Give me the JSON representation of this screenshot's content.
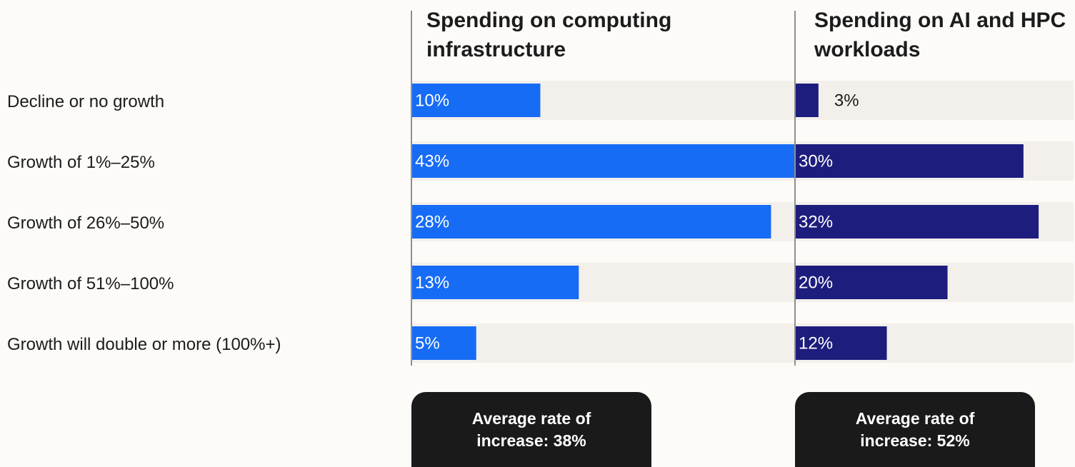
{
  "chart_data": {
    "type": "bar",
    "orientation": "horizontal",
    "categories": [
      "Decline or no growth",
      "Growth of 1%–25%",
      "Growth of 26%–50%",
      "Growth of 51%–100%",
      "Growth will double or more (100%+)"
    ],
    "panels": [
      {
        "title": "Spending on computing infrastructure",
        "values": [
          10,
          43,
          28,
          13,
          5
        ],
        "labels": [
          "10%",
          "43%",
          "28%",
          "13%",
          "5%"
        ],
        "color": "#176cf5",
        "xlim": [
          0,
          51.6
        ],
        "average_note": "Average rate of increase: 38%"
      },
      {
        "title": "Spending on AI and HPC workloads",
        "values": [
          3,
          30,
          32,
          20,
          12
        ],
        "labels": [
          "3%",
          "30%",
          "32%",
          "20%",
          "12%"
        ],
        "color": "#1d1d7e",
        "xlim": [
          0,
          36.6
        ],
        "average_note": "Average rate of increase: 52%"
      }
    ],
    "track_color": "#f3f0ec",
    "axis_line_color": "#8f8f8f",
    "grid": false,
    "legend": "none"
  }
}
